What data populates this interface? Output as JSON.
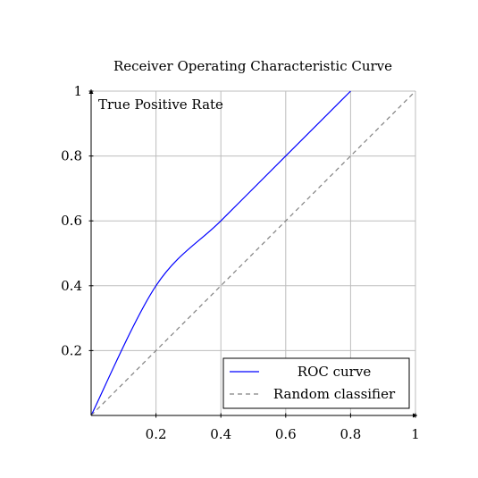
{
  "chart_data": {
    "type": "line",
    "title": "Receiver Operating Characteristic Curve",
    "xlabel": "",
    "ylabel": "True Positive Rate",
    "xlim": [
      0,
      1
    ],
    "ylim": [
      0,
      1
    ],
    "x_ticks": [
      {
        "value": 0.2,
        "label": "0.2"
      },
      {
        "value": 0.4,
        "label": "0.4"
      },
      {
        "value": 0.6,
        "label": "0.6"
      },
      {
        "value": 0.8,
        "label": "0.8"
      },
      {
        "value": 1.0,
        "label": "1"
      }
    ],
    "y_ticks": [
      {
        "value": 0.2,
        "label": "0.2"
      },
      {
        "value": 0.4,
        "label": "0.4"
      },
      {
        "value": 0.6,
        "label": "0.6"
      },
      {
        "value": 0.8,
        "label": "0.8"
      },
      {
        "value": 1.0,
        "label": "1"
      }
    ],
    "grid": true,
    "legend_position": "bottom-right",
    "series": [
      {
        "name": "ROC curve",
        "color": "#0000ff",
        "style": "solid",
        "smooth": true,
        "x": [
          0,
          0.2,
          0.4,
          0.6,
          0.8
        ],
        "y": [
          0,
          0.4,
          0.6,
          0.8,
          1.0
        ]
      },
      {
        "name": "Random classifier",
        "color": "#808080",
        "style": "dashed",
        "smooth": false,
        "x": [
          0,
          1
        ],
        "y": [
          0,
          1
        ]
      }
    ]
  }
}
